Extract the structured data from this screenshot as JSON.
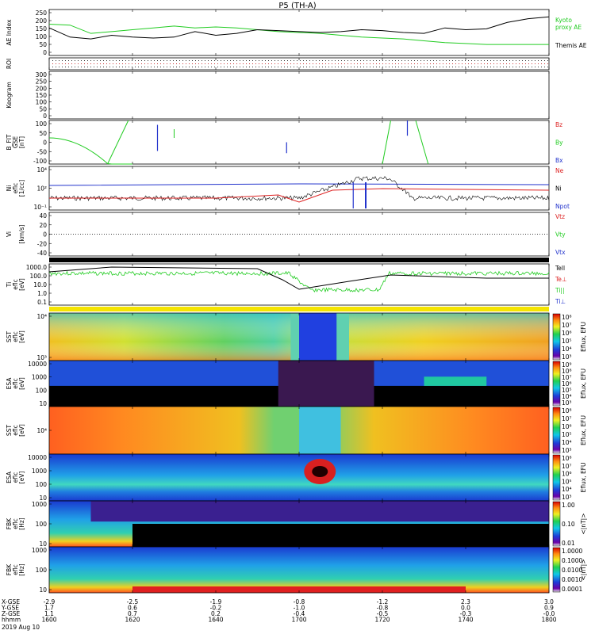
{
  "page": {
    "title": "P5 (TH-A)",
    "date": "2019 Aug 10",
    "footer_rows": [
      {
        "label": "X-GSE",
        "values": [
          "-2.9",
          "-2.5",
          "-1.9",
          "-0.8",
          "-1.2",
          "2.3",
          "3.0"
        ]
      },
      {
        "label": "Y-GSE",
        "values": [
          "1.7",
          "0.6",
          "-0.2",
          "-1.0",
          "-0.8",
          "0.0",
          "0.9"
        ]
      },
      {
        "label": "Z-GSE",
        "values": [
          "1.1",
          "0.7",
          "0.2",
          "-0.4",
          "-0.5",
          "-0.3",
          "-0.0"
        ]
      },
      {
        "label": "hhmm",
        "values": [
          "1600",
          "1620",
          "1640",
          "1700",
          "1720",
          "1740",
          "1800"
        ]
      }
    ]
  },
  "colors": {
    "black": "#000000",
    "green": "#22cc22",
    "red": "#dd2222",
    "blue": "#2233cc"
  },
  "chart_data": [
    {
      "type": "line",
      "id": "ae",
      "ylabel": "AE Index",
      "ylim": [
        0,
        250
      ],
      "yticks": [
        "250",
        "200",
        "150",
        "100",
        "50",
        "0"
      ],
      "series": [
        {
          "name": "Kyoto proxy AE",
          "color": "#22cc22",
          "x": [
            1600,
            1605,
            1610,
            1615,
            1620,
            1625,
            1630,
            1635,
            1640,
            1645,
            1650,
            1655,
            1700,
            1705,
            1710,
            1715,
            1720,
            1725,
            1730,
            1735,
            1740,
            1745,
            1750,
            1755,
            1800
          ],
          "values": [
            170,
            165,
            120,
            130,
            140,
            150,
            160,
            150,
            155,
            150,
            140,
            130,
            125,
            120,
            110,
            100,
            95,
            90,
            80,
            70,
            65,
            60,
            60,
            60,
            60
          ]
        },
        {
          "name": "Themis AE",
          "color": "#000000",
          "x": [
            1600,
            1605,
            1610,
            1615,
            1620,
            1625,
            1630,
            1635,
            1640,
            1645,
            1650,
            1655,
            1700,
            1705,
            1710,
            1715,
            1720,
            1725,
            1730,
            1735,
            1740,
            1745,
            1750,
            1755,
            1800
          ],
          "values": [
            150,
            100,
            90,
            110,
            100,
            95,
            100,
            130,
            110,
            120,
            140,
            135,
            130,
            125,
            130,
            140,
            135,
            125,
            120,
            150,
            140,
            145,
            180,
            200,
            210
          ]
        }
      ]
    },
    {
      "type": "heatmap",
      "id": "roi",
      "ylabel": "ROI"
    },
    {
      "type": "line",
      "id": "keogram",
      "ylabel": "Keogram",
      "ylim": [
        0,
        300
      ],
      "yticks": [
        "300",
        "250",
        "200",
        "150",
        "100",
        "50",
        "0"
      ]
    },
    {
      "type": "line",
      "id": "bfit",
      "ylabel": "B_FIT",
      "units": "[nT]",
      "coord": "GSE",
      "ylim": [
        -100,
        100
      ],
      "yticks": [
        "100",
        "50",
        "0",
        "-50",
        "-100"
      ],
      "legend": [
        "Bz",
        "By",
        "Bx"
      ],
      "legend_colors": [
        "#dd2222",
        "#22cc22",
        "#2233cc"
      ]
    },
    {
      "type": "line",
      "id": "ni",
      "ylabel": "Ni",
      "units": "[1/cc]",
      "coord": "eflc",
      "yticks": [
        "10⁴",
        "10²",
        "10⁻¹"
      ],
      "legend": [
        "Ne",
        "Ni",
        "Npot"
      ],
      "legend_colors": [
        "#dd2222",
        "#000000",
        "#2233cc"
      ]
    },
    {
      "type": "line",
      "id": "vi",
      "ylabel": "Vi",
      "units": "[km/s]",
      "ylim": [
        -50,
        50
      ],
      "yticks": [
        "40",
        "20",
        "0",
        "-20",
        "-40"
      ],
      "legend": [
        "Vtz",
        "Vty",
        "Vtx"
      ],
      "legend_colors": [
        "#dd2222",
        "#22cc22",
        "#2233cc"
      ]
    },
    {
      "type": "line",
      "id": "ti",
      "ylabel": "Ti",
      "units": "[eV]",
      "coord": "eflc",
      "yticks": [
        "1000.0",
        "100.0",
        "10.0",
        "1.0",
        "0.1"
      ],
      "legend": [
        "Tell",
        "Te⊥",
        "Ti||",
        "Ti⊥"
      ],
      "legend_colors": [
        "#000000",
        "#dd2222",
        "#22cc22",
        "#2233cc"
      ]
    },
    {
      "type": "heatmap",
      "id": "sst_e",
      "ylabel": "SST",
      "units": "[eV]",
      "coord": "eflc",
      "yticks": [
        "10⁴",
        "10³"
      ],
      "colorbar_label": "Eflux, EFU",
      "colorbar_ticks": [
        "10⁸",
        "10⁷",
        "10⁶",
        "10⁵",
        "10⁴",
        "10³"
      ]
    },
    {
      "type": "heatmap",
      "id": "esa_e",
      "ylabel": "ESA",
      "units": "[eV]",
      "coord": "eflc",
      "yticks": [
        "10000",
        "1000",
        "100",
        "10"
      ],
      "colorbar_label": "Eflux, EFU",
      "colorbar_ticks": [
        "10⁹",
        "10⁸",
        "10⁷",
        "10⁶",
        "10⁵",
        "10⁴",
        "10³"
      ]
    },
    {
      "type": "heatmap",
      "id": "sst_i",
      "ylabel": "SST",
      "units": "[eV]",
      "coord": "eflc",
      "yticks": [
        "10⁴"
      ],
      "colorbar_label": "Eflux, EFU",
      "colorbar_ticks": [
        "10⁸",
        "10⁷",
        "10⁶",
        "10⁵",
        "10⁴",
        "10³"
      ]
    },
    {
      "type": "heatmap",
      "id": "esa_i",
      "ylabel": "ESA",
      "units": "[eV]",
      "coord": "eflc",
      "yticks": [
        "10000",
        "1000",
        "100",
        "10"
      ],
      "colorbar_label": "Eflux, EFU",
      "colorbar_ticks": [
        "10⁸",
        "10⁷",
        "10⁶",
        "10⁵",
        "10⁴",
        "10³"
      ]
    },
    {
      "type": "heatmap",
      "id": "fbk_scm",
      "ylabel": "FBK",
      "units": "[Hz]",
      "coord": "eflc",
      "yticks": [
        "1000",
        "100",
        "10"
      ],
      "colorbar_label": "<|nT|>",
      "colorbar_ticks": [
        "1.00",
        "0.10",
        "0.01"
      ]
    },
    {
      "type": "heatmap",
      "id": "fbk_efi",
      "ylabel": "FBK",
      "units": "[Hz]",
      "coord": "eflc",
      "yticks": [
        "1000",
        "100",
        "10"
      ],
      "colorbar_label": "<|nT|>",
      "colorbar_ticks": [
        "1.0000",
        "0.1000",
        "0.0100",
        "0.0010",
        "0.0001"
      ]
    }
  ]
}
